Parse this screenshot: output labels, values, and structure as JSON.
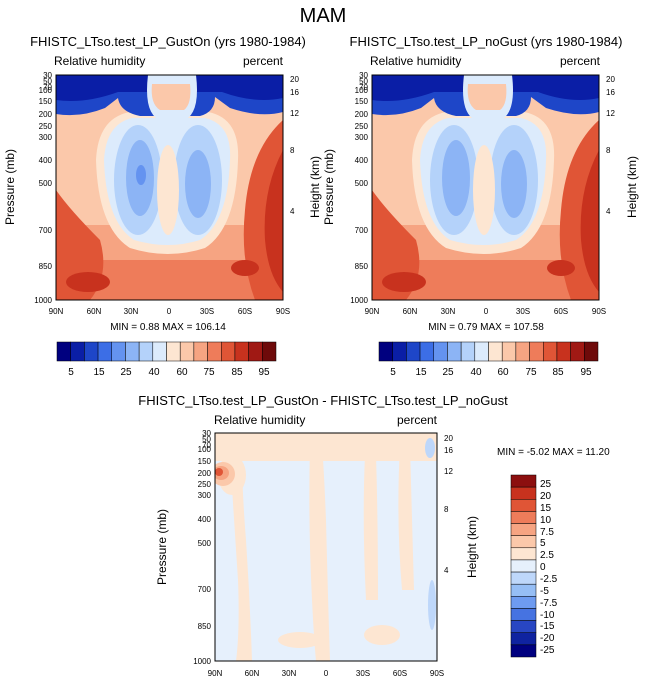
{
  "page_title": "MAM",
  "colors": {
    "panel_scale": [
      "#00007f",
      "#0a1ea6",
      "#1e46c8",
      "#3c6ee6",
      "#6493f0",
      "#8cb4f5",
      "#b4d2fa",
      "#dcebfc",
      "#fde6d2",
      "#fbc8aa",
      "#f6a482",
      "#ee7c5a",
      "#e05536",
      "#c8321e",
      "#a01914",
      "#6e0a0a"
    ],
    "diff_scale": [
      "#00007f",
      "#0f23a0",
      "#2846c3",
      "#4673e1",
      "#6e9bf0",
      "#96bef5",
      "#bed7fa",
      "#e6f0fc",
      "#fde6d2",
      "#fbc8aa",
      "#f6a482",
      "#ee7c5a",
      "#e05536",
      "#c8321e",
      "#8c0f0f"
    ]
  },
  "chart_data": [
    {
      "type": "heatmap",
      "title": "FHISTC_LTso.test_LP_GustOn (yrs 1980-1984)",
      "left_label": "Relative humidity",
      "right_label": "percent",
      "xlabel": "",
      "ylabel": "Pressure (mb)",
      "y2label": "Height (km)",
      "x_ticks": [
        "90N",
        "60N",
        "30N",
        "0",
        "30S",
        "60S",
        "90S"
      ],
      "y_ticks": [
        "30",
        "50",
        "70",
        "100",
        "150",
        "200",
        "250",
        "300",
        "400",
        "500",
        "700",
        "850",
        "1000"
      ],
      "y2_ticks": [
        "20",
        "16",
        "12",
        "8",
        "4"
      ],
      "stats": "MIN =  0.88  MAX = 106.14",
      "colorbar_levels": [
        "5",
        "15",
        "25",
        "40",
        "60",
        "75",
        "85",
        "95"
      ]
    },
    {
      "type": "heatmap",
      "title": "FHISTC_LTso.test_LP_noGust (yrs 1980-1984)",
      "left_label": "Relative humidity",
      "right_label": "percent",
      "xlabel": "",
      "ylabel": "Pressure (mb)",
      "y2label": "Height (km)",
      "x_ticks": [
        "90N",
        "60N",
        "30N",
        "0",
        "30S",
        "60S",
        "90S"
      ],
      "y_ticks": [
        "30",
        "50",
        "70",
        "100",
        "150",
        "200",
        "250",
        "300",
        "400",
        "500",
        "700",
        "850",
        "1000"
      ],
      "y2_ticks": [
        "20",
        "16",
        "12",
        "8",
        "4"
      ],
      "stats": "MIN =  0.79  MAX = 107.58",
      "colorbar_levels": [
        "5",
        "15",
        "25",
        "40",
        "60",
        "75",
        "85",
        "95"
      ]
    },
    {
      "type": "heatmap",
      "title": "FHISTC_LTso.test_LP_GustOn - FHISTC_LTso.test_LP_noGust",
      "left_label": "Relative humidity",
      "right_label": "percent",
      "xlabel": "",
      "ylabel": "Pressure (mb)",
      "y2label": "Height (km)",
      "x_ticks": [
        "90N",
        "60N",
        "30N",
        "0",
        "30S",
        "60S",
        "90S"
      ],
      "y_ticks": [
        "30",
        "50",
        "70",
        "100",
        "150",
        "200",
        "250",
        "300",
        "400",
        "500",
        "700",
        "850",
        "1000"
      ],
      "y2_ticks": [
        "20",
        "16",
        "12",
        "8",
        "4"
      ],
      "stats": "MIN = -5.02  MAX = 11.20",
      "colorbar_levels": [
        "25",
        "20",
        "15",
        "10",
        "7.5",
        "5",
        "2.5",
        "0",
        "-2.5",
        "-5",
        "-7.5",
        "-10",
        "-15",
        "-20",
        "-25"
      ]
    }
  ]
}
